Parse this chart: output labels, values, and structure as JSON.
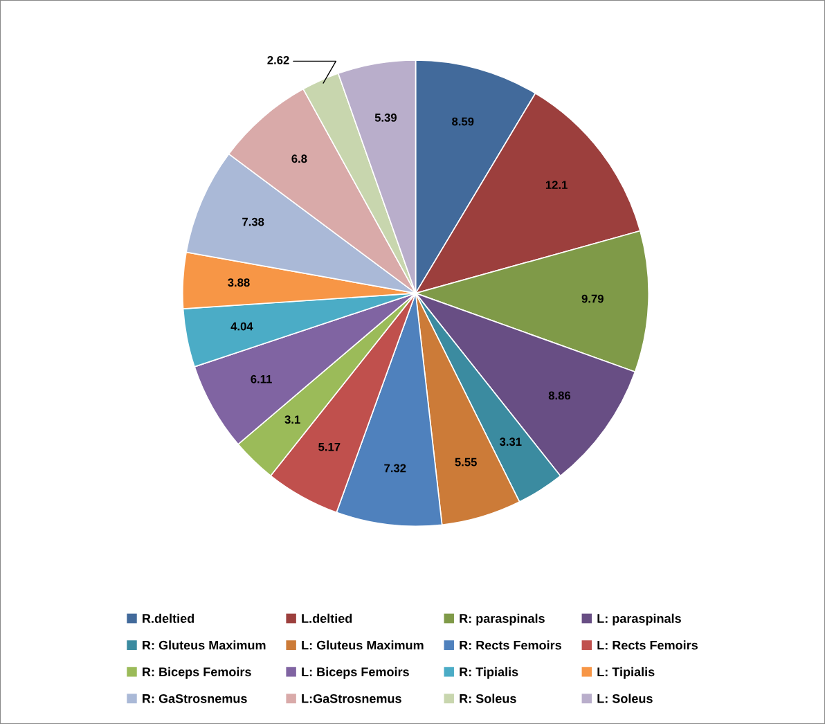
{
  "chart_data": {
    "type": "pie",
    "categories": [
      "R.deltied",
      "L.deltied",
      "R: paraspinals",
      "L: paraspinals",
      "R: Gluteus Maximum",
      "L: Gluteus Maximum",
      "R: Rects Femoirs",
      "L: Rects Femoirs",
      "R: Biceps Femoirs",
      "L: Biceps Femoirs",
      "R: Tipialis",
      "L: Tipialis",
      "R: GaStrosnemus",
      "L:GaStrosnemus",
      "R: Soleus",
      "L: Soleus"
    ],
    "values": [
      8.59,
      12.1,
      9.79,
      8.86,
      3.31,
      5.55,
      7.32,
      5.17,
      3.1,
      6.11,
      4.04,
      3.88,
      7.38,
      6.8,
      2.62,
      5.39
    ],
    "colors": [
      "#426a9b",
      "#9c3f3d",
      "#7f9a48",
      "#684e84",
      "#3b8ba0",
      "#cc7b38",
      "#4f81bd",
      "#c0504d",
      "#9bbb59",
      "#8064a2",
      "#4bacc6",
      "#f79646",
      "#aab9d7",
      "#d9aaa9",
      "#c8d6ae",
      "#b9aecb"
    ],
    "data_labels": true,
    "legend": "bottom"
  }
}
